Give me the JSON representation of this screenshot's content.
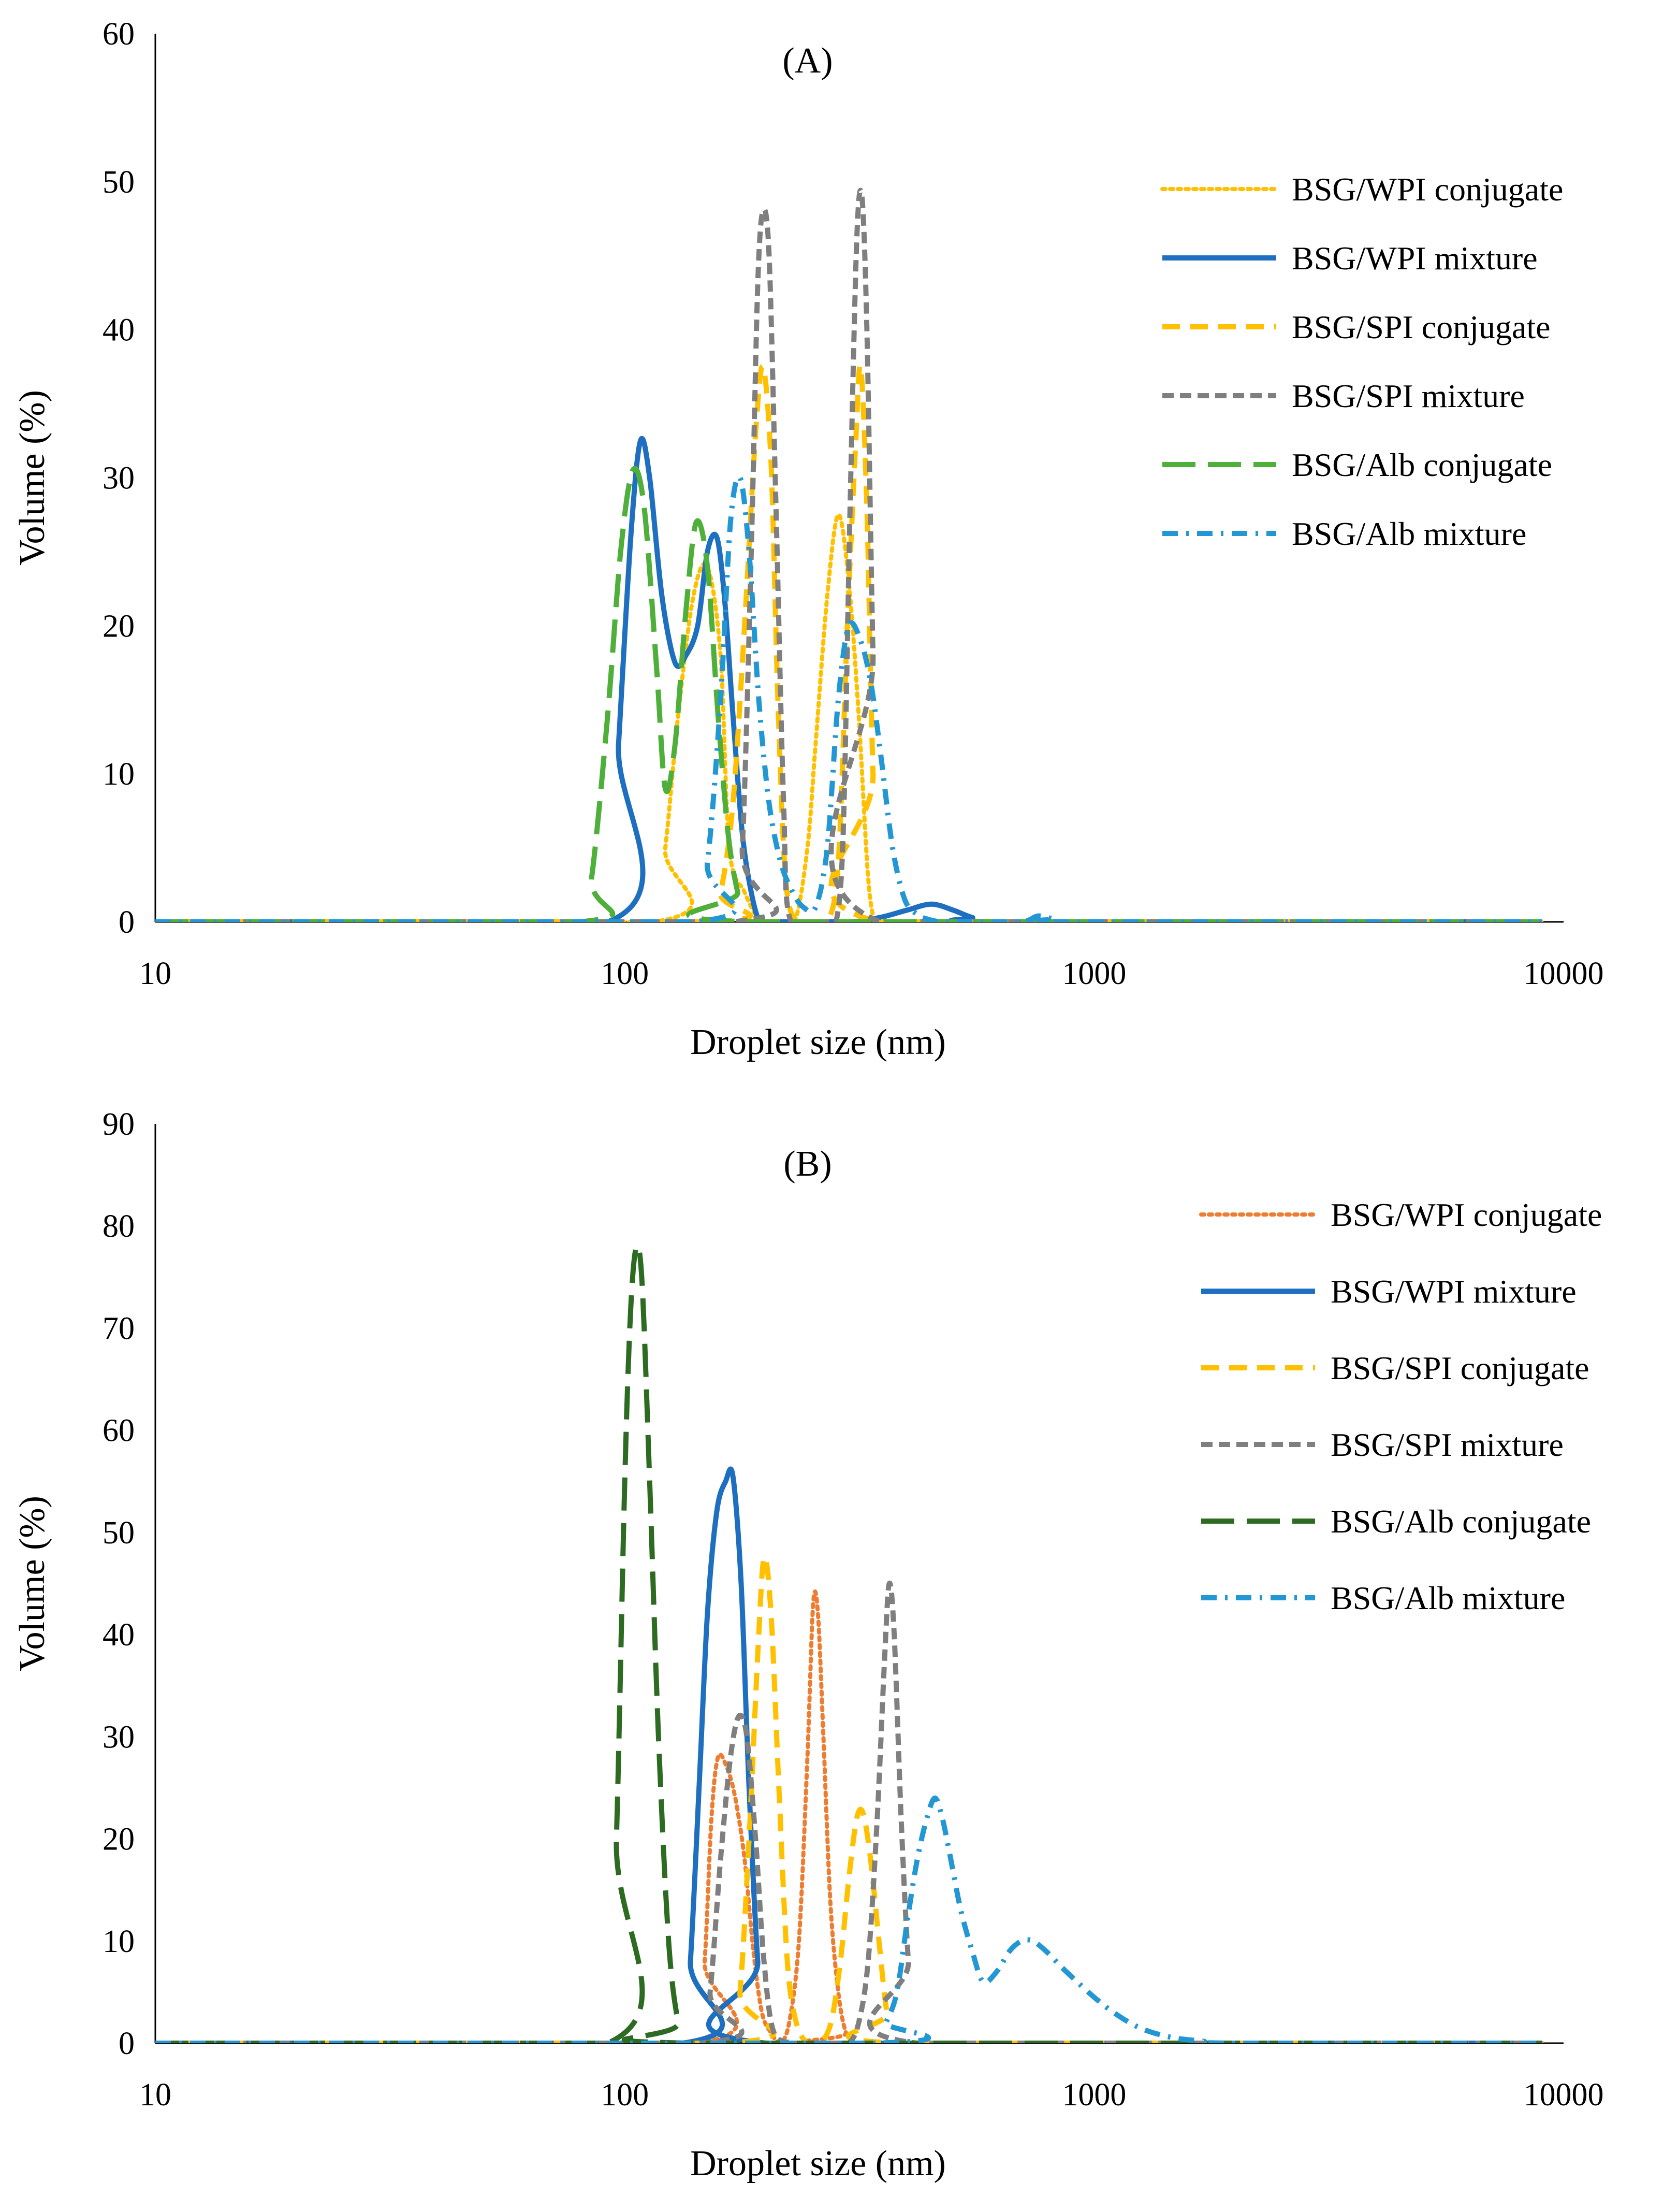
{
  "chart_data": [
    {
      "type": "line",
      "title": "(A)",
      "xlabel": "Droplet size (nm)",
      "ylabel": "Volume (%)",
      "xscale": "log",
      "xlim": [
        10,
        10000
      ],
      "ylim": [
        0,
        60
      ],
      "xticks": [
        10,
        100,
        1000,
        10000
      ],
      "xtick_labels": [
        "10",
        "100",
        "1000",
        "10000"
      ],
      "yticks": [
        0,
        10,
        20,
        30,
        40,
        50,
        60
      ],
      "ytick_labels": [
        "0",
        "10",
        "20",
        "30",
        "40",
        "50",
        "60"
      ],
      "legend_position": "right",
      "series": [
        {
          "name": "BSG/WPI conjugate",
          "color": "#FFC000",
          "style": "dotted",
          "x": [
            10,
            115,
            122,
            130,
            140,
            150,
            160,
            167,
            180,
            195,
            210,
            230,
            245,
            255,
            270,
            285,
            300,
            315,
            330,
            342,
            360,
            9000
          ],
          "y": [
            0,
            0,
            5,
            14,
            22,
            24,
            18,
            5,
            2,
            0,
            0,
            0,
            5,
            12,
            22,
            27.5,
            23,
            14,
            3,
            0,
            0,
            0
          ]
        },
        {
          "name": "BSG/WPI mixture",
          "color": "#1F6FC0",
          "style": "solid",
          "x": [
            10,
            92,
            97,
            103,
            108,
            113,
            120,
            128,
            135,
            143,
            150,
            157,
            163,
            170,
            178,
            186,
            194,
            205,
            300,
            350,
            400,
            450,
            500,
            550,
            620,
            9000
          ],
          "y": [
            0,
            0,
            12,
            26,
            32.5,
            30,
            22,
            17.5,
            18,
            20,
            25,
            26,
            22,
            14,
            6,
            2,
            0,
            0,
            0,
            0.3,
            0.8,
            1.2,
            0.8,
            0.3,
            0,
            0
          ]
        },
        {
          "name": "BSG/SPI conjugate",
          "color": "#FFC000",
          "style": "dashed",
          "x": [
            10,
            150,
            160,
            170,
            180,
            190,
            197,
            205,
            212,
            220,
            232,
            250,
            270,
            285,
            298,
            310,
            318,
            328,
            338,
            350,
            9000
          ],
          "y": [
            0,
            0,
            2,
            8,
            20,
            33,
            37.5,
            31,
            15,
            3,
            0,
            0,
            0,
            4,
            20,
            32,
            37.5,
            28,
            10,
            0,
            0
          ]
        },
        {
          "name": "BSG/SPI mixture",
          "color": "#7F7F7F",
          "style": "dashed-short",
          "x": [
            10,
            170,
            178,
            186,
            192,
            197,
            203,
            210,
            218,
            226,
            270,
            282,
            292,
            302,
            312,
            320,
            328,
            338,
            350,
            9000
          ],
          "y": [
            0,
            0,
            5,
            25,
            43,
            48,
            45,
            28,
            8,
            0,
            0,
            0,
            6,
            28,
            46,
            49,
            40,
            18,
            0,
            0
          ]
        },
        {
          "name": "BSG/Alb conjugate",
          "color": "#4EAF3A",
          "style": "long-dash",
          "x": [
            10,
            80,
            85,
            92,
            98,
            104,
            110,
            117,
            122,
            128,
            135,
            142,
            150,
            158,
            166,
            174,
            183,
            9000
          ],
          "y": [
            0,
            0,
            3,
            14,
            25,
            30.5,
            28,
            17,
            9,
            12,
            21,
            27,
            24,
            14,
            6,
            2,
            0,
            0
          ]
        },
        {
          "name": "BSG/Alb mixture",
          "color": "#2397D4",
          "style": "dash-dot",
          "x": [
            10,
            140,
            150,
            160,
            168,
            176,
            184,
            193,
            203,
            215,
            228,
            240,
            255,
            270,
            285,
            300,
            318,
            335,
            352,
            372,
            395,
            420,
            440,
            470,
            500,
            560,
            700,
            760,
            820,
            900,
            9000
          ],
          "y": [
            0,
            0,
            4,
            15,
            27,
            30,
            25,
            15,
            8,
            4,
            2,
            1,
            1,
            5,
            15,
            20,
            19,
            16,
            11,
            5,
            1.5,
            0.5,
            0.2,
            0,
            0,
            0,
            0,
            0.4,
            0.2,
            0,
            0
          ]
        }
      ]
    },
    {
      "type": "line",
      "title": "(B)",
      "xlabel": "Droplet size (nm)",
      "ylabel": "Volume (%)",
      "xscale": "log",
      "xlim": [
        10,
        10000
      ],
      "ylim": [
        0,
        90
      ],
      "xticks": [
        10,
        100,
        1000,
        10000
      ],
      "xtick_labels": [
        "10",
        "100",
        "1000",
        "10000"
      ],
      "yticks": [
        0,
        10,
        20,
        30,
        40,
        50,
        60,
        70,
        80,
        90
      ],
      "ytick_labels": [
        "0",
        "10",
        "20",
        "30",
        "40",
        "50",
        "60",
        "70",
        "80",
        "90"
      ],
      "legend_position": "right",
      "series": [
        {
          "name": "BSG/WPI conjugate",
          "color": "#ED7D31",
          "style": "dotted",
          "x": [
            10,
            142,
            148,
            153,
            158,
            165,
            172,
            180,
            188,
            196,
            205,
            214,
            224,
            235,
            245,
            252,
            258,
            265,
            274,
            285,
            296,
            308,
            9000
          ],
          "y": [
            0,
            0,
            8,
            22,
            28,
            27,
            24,
            18,
            9,
            3,
            1,
            0,
            2,
            10,
            28,
            43,
            42,
            30,
            14,
            5,
            1,
            0,
            0
          ]
        },
        {
          "name": "BSG/WPI mixture",
          "color": "#1F6FC0",
          "style": "solid",
          "x": [
            10,
            133,
            138,
            144,
            150,
            157,
            164,
            170,
            177,
            184,
            192,
            200,
            9000
          ],
          "y": [
            0,
            0,
            8,
            25,
            42,
            52,
            55,
            55.5,
            45,
            25,
            8,
            0,
            0
          ]
        },
        {
          "name": "BSG/SPI conjugate",
          "color": "#FFC000",
          "style": "dashed",
          "x": [
            10,
            168,
            176,
            184,
            192,
            198,
            205,
            213,
            222,
            232,
            245,
            260,
            275,
            288,
            300,
            312,
            322,
            334,
            348,
            362,
            380,
            9000
          ],
          "y": [
            0,
            0,
            5,
            20,
            38,
            47.5,
            42,
            25,
            8,
            2,
            0,
            0,
            2,
            8,
            16,
            22,
            22.5,
            18,
            10,
            3,
            0,
            0
          ]
        },
        {
          "name": "BSG/SPI mixture",
          "color": "#7F7F7F",
          "style": "dashed-short",
          "x": [
            10,
            145,
            152,
            160,
            168,
            175,
            182,
            190,
            198,
            208,
            230,
            280,
            300,
            315,
            330,
            345,
            358,
            366,
            375,
            388,
            402,
            418,
            9000
          ],
          "y": [
            0,
            0,
            5,
            18,
            28,
            32,
            30,
            20,
            8,
            1,
            0,
            0,
            0,
            2,
            8,
            22,
            38,
            45,
            40,
            22,
            8,
            0,
            0
          ]
        },
        {
          "name": "BSG/Alb conjugate",
          "color": "#2E6B22",
          "style": "long-dash",
          "x": [
            10,
            92,
            96,
            100,
            103,
            106,
            109,
            113,
            118,
            124,
            130,
            136,
            9000
          ],
          "y": [
            0,
            0,
            20,
            55,
            72,
            78,
            74,
            55,
            30,
            10,
            2,
            0,
            0
          ]
        },
        {
          "name": "BSG/Alb mixture",
          "color": "#2397D4",
          "style": "dash-dot",
          "x": [
            10,
            340,
            360,
            380,
            400,
            420,
            440,
            458,
            475,
            495,
            520,
            550,
            580,
            620,
            660,
            700,
            740,
            790,
            850,
            920,
            1000,
            1100,
            1250,
            1450,
            1700,
            2000,
            9000
          ],
          "y": [
            0,
            0,
            2,
            5,
            12,
            18,
            22,
            24,
            22,
            18,
            13,
            9,
            6,
            7,
            9,
            10,
            10,
            9,
            7.5,
            6,
            4.5,
            3,
            1.5,
            0.6,
            0.2,
            0,
            0
          ]
        }
      ]
    }
  ]
}
